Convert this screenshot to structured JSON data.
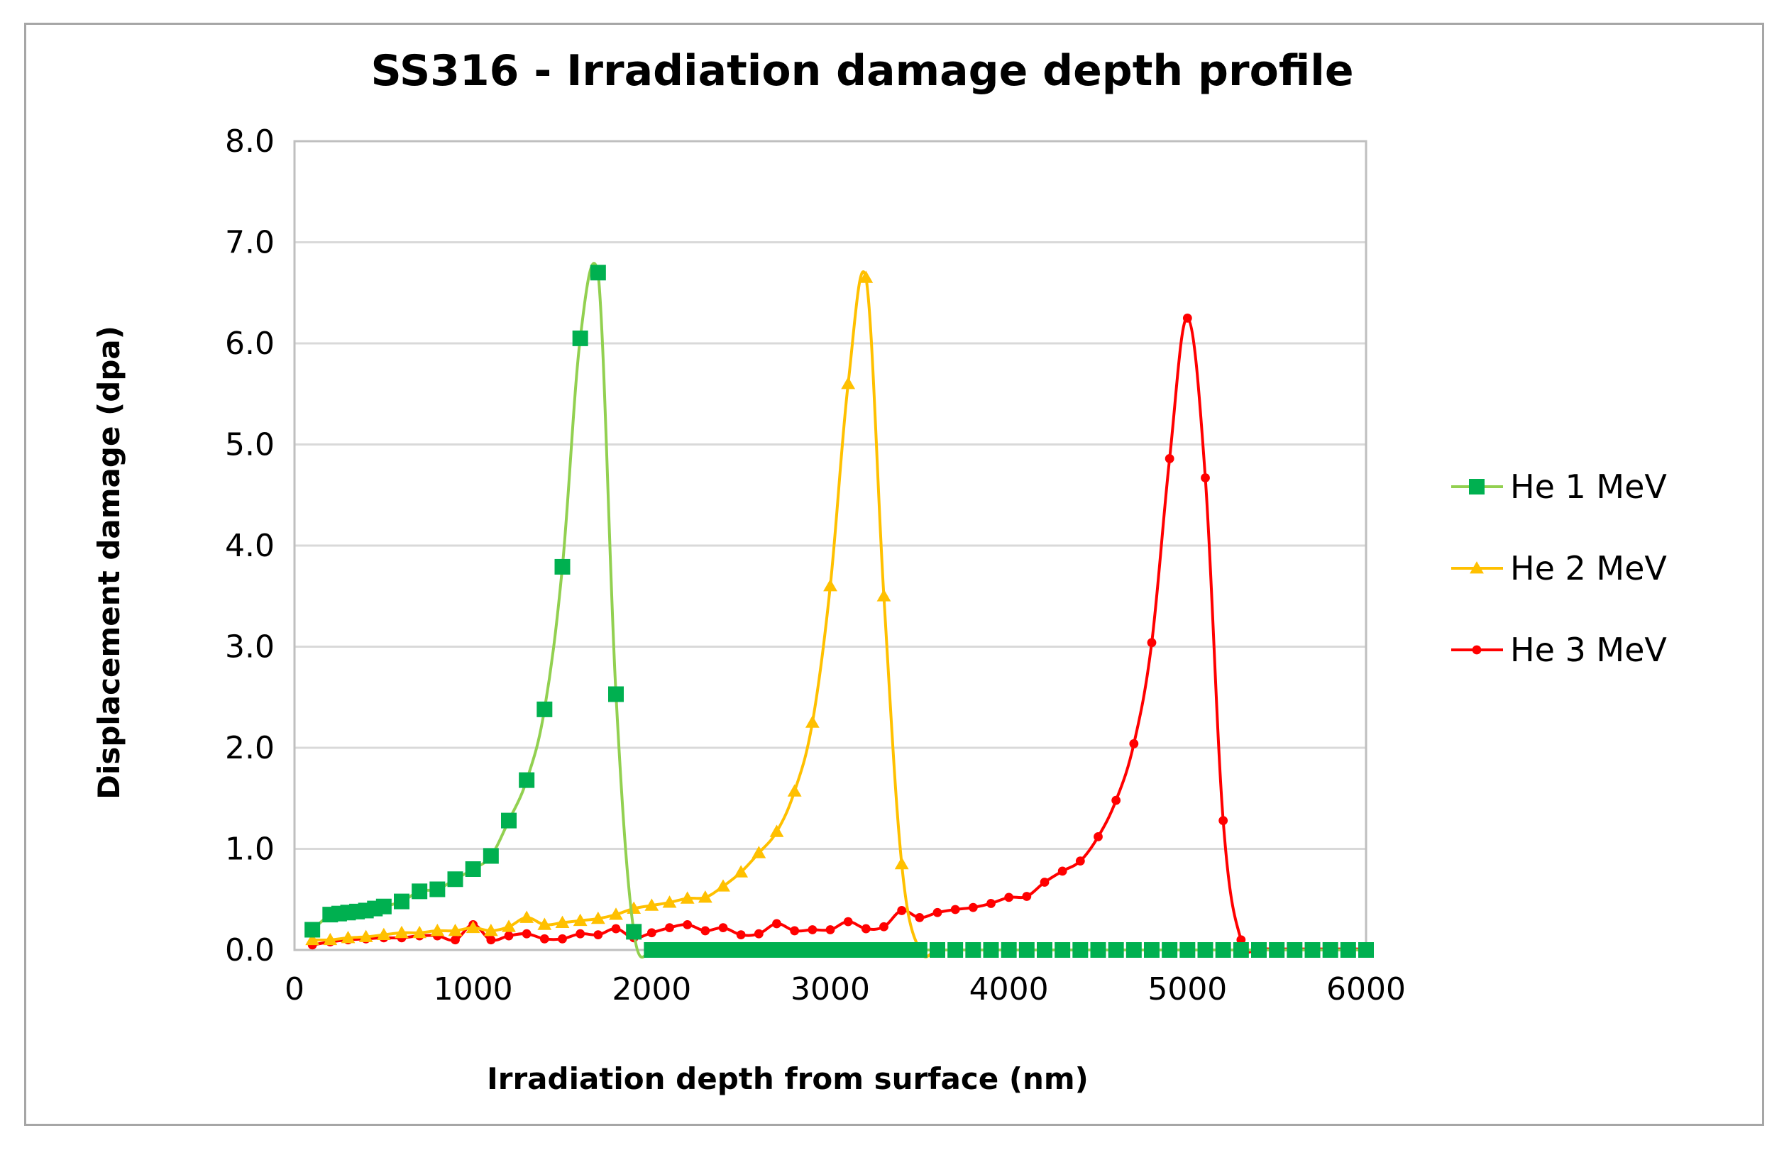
{
  "chart_data": {
    "type": "line",
    "title": "SS316 - Irradiation damage depth profile",
    "xlabel": "Irradiation depth from surface (nm)",
    "ylabel": "Displacement damage (dpa)",
    "xlim": [
      0,
      6000
    ],
    "ylim": [
      0,
      8
    ],
    "xticks": [
      "0",
      "1000",
      "2000",
      "3000",
      "4000",
      "5000",
      "6000"
    ],
    "yticks": [
      "0.0",
      "1.0",
      "2.0",
      "3.0",
      "4.0",
      "5.0",
      "6.0",
      "7.0",
      "8.0"
    ],
    "grid": "horizontal",
    "legend_position": "right",
    "series": [
      {
        "name": "He 1 MeV",
        "color": "#00b050",
        "line_color": "#92d050",
        "marker": "square",
        "x": [
          100,
          200,
          250,
          300,
          350,
          400,
          450,
          500,
          600,
          700,
          800,
          900,
          1000,
          1100,
          1200,
          1300,
          1400,
          1500,
          1600,
          1700,
          1800,
          1900,
          2000,
          2050,
          2100,
          2150,
          2200,
          2250,
          2300,
          2350,
          2400,
          2450,
          2500,
          2550,
          2600,
          2650,
          2700,
          2750,
          2800,
          2850,
          2900,
          2950,
          3000,
          3050,
          3100,
          3150,
          3200,
          3250,
          3300,
          3350,
          3400,
          3450,
          3500,
          3600,
          3700,
          3800,
          3900,
          4000,
          4100,
          4200,
          4300,
          4400,
          4500,
          4600,
          4700,
          4800,
          4900,
          5000,
          5100,
          5200,
          5300,
          5400,
          5500,
          5600,
          5700,
          5800,
          5900,
          6000
        ],
        "y": [
          0.2,
          0.35,
          0.36,
          0.37,
          0.38,
          0.39,
          0.41,
          0.43,
          0.48,
          0.58,
          0.6,
          0.7,
          0.8,
          0.93,
          1.28,
          1.68,
          2.38,
          3.79,
          6.05,
          6.7,
          2.53,
          0.18,
          0.0,
          0.0,
          0.0,
          0.0,
          0.0,
          0.0,
          0.0,
          0.0,
          0.0,
          0.0,
          0.0,
          0.0,
          0.0,
          0.0,
          0.0,
          0.0,
          0.0,
          0.0,
          0.0,
          0.0,
          0.0,
          0.0,
          0.0,
          0.0,
          0.0,
          0.0,
          0.0,
          0.0,
          0.0,
          0.0,
          0.0,
          0.0,
          0.0,
          0.0,
          0.0,
          0.0,
          0.0,
          0.0,
          0.0,
          0.0,
          0.0,
          0.0,
          0.0,
          0.0,
          0.0,
          0.0,
          0.0,
          0.0,
          0.0,
          0.0,
          0.0,
          0.0,
          0.0,
          0.0,
          0.0,
          0.0
        ]
      },
      {
        "name": "He 2 MeV",
        "color": "#ffc000",
        "line_color": "#ffc000",
        "marker": "triangle",
        "x": [
          100,
          200,
          300,
          400,
          500,
          600,
          700,
          800,
          900,
          1000,
          1100,
          1200,
          1300,
          1400,
          1500,
          1600,
          1700,
          1800,
          1900,
          2000,
          2100,
          2200,
          2300,
          2400,
          2500,
          2600,
          2700,
          2800,
          2900,
          3000,
          3100,
          3200,
          3300,
          3400,
          3500,
          3600,
          3700,
          3800,
          3900,
          4000,
          4100,
          4200,
          4300,
          4400,
          4500,
          4600,
          4700,
          4800,
          4900,
          5000,
          5100,
          5200,
          5300,
          5400,
          5500,
          5600,
          5700,
          5800,
          5900,
          6000
        ],
        "y": [
          0.1,
          0.1,
          0.12,
          0.13,
          0.15,
          0.17,
          0.17,
          0.19,
          0.19,
          0.22,
          0.19,
          0.23,
          0.32,
          0.25,
          0.27,
          0.29,
          0.31,
          0.35,
          0.41,
          0.44,
          0.47,
          0.51,
          0.52,
          0.63,
          0.77,
          0.96,
          1.17,
          1.57,
          2.25,
          3.6,
          5.6,
          6.65,
          3.5,
          0.85,
          0.0,
          0.0,
          0.0,
          0.0,
          0.0,
          0.0,
          0.0,
          0.0,
          0.0,
          0.0,
          0.0,
          0.0,
          0.0,
          0.0,
          0.0,
          0.0,
          0.0,
          0.0,
          0.0,
          0.0,
          0.0,
          0.0,
          0.0,
          0.0,
          0.0,
          0.0
        ]
      },
      {
        "name": "He 3 MeV",
        "color": "#ff0000",
        "line_color": "#ff0000",
        "marker": "circle",
        "x": [
          100,
          200,
          300,
          400,
          500,
          600,
          700,
          800,
          900,
          1000,
          1100,
          1200,
          1300,
          1400,
          1500,
          1600,
          1700,
          1800,
          1900,
          2000,
          2100,
          2200,
          2300,
          2400,
          2500,
          2600,
          2700,
          2800,
          2900,
          3000,
          3100,
          3200,
          3300,
          3400,
          3500,
          3600,
          3700,
          3800,
          3900,
          4000,
          4100,
          4200,
          4300,
          4400,
          4500,
          4600,
          4700,
          4800,
          4900,
          5000,
          5100,
          5200,
          5300,
          5400,
          5500,
          5600,
          5700,
          5800,
          5900,
          6000
        ],
        "y": [
          0.05,
          0.08,
          0.1,
          0.11,
          0.12,
          0.12,
          0.14,
          0.14,
          0.1,
          0.25,
          0.1,
          0.14,
          0.16,
          0.11,
          0.11,
          0.16,
          0.15,
          0.21,
          0.12,
          0.17,
          0.22,
          0.25,
          0.19,
          0.22,
          0.15,
          0.16,
          0.26,
          0.19,
          0.2,
          0.2,
          0.28,
          0.21,
          0.23,
          0.39,
          0.32,
          0.37,
          0.4,
          0.42,
          0.46,
          0.52,
          0.53,
          0.67,
          0.78,
          0.88,
          1.12,
          1.48,
          2.04,
          3.04,
          4.86,
          6.25,
          4.67,
          1.28,
          0.1,
          0.02,
          0.01,
          0.01,
          0.01,
          0.01,
          0.01,
          0.01
        ]
      }
    ]
  }
}
